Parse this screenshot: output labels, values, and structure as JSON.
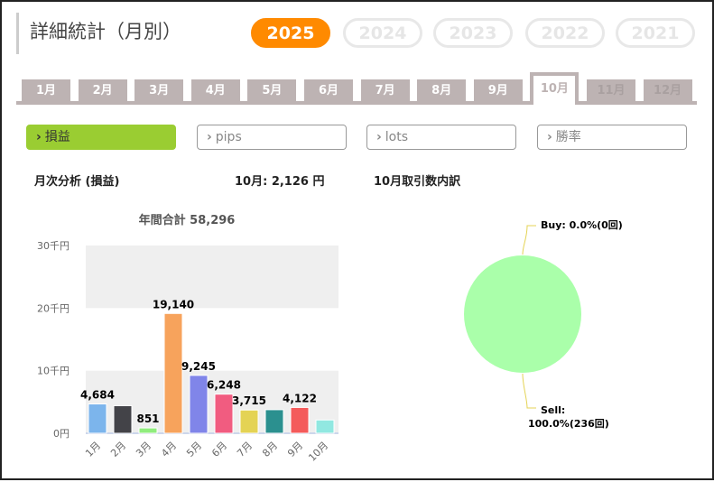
{
  "title": "詳細統計（月別）",
  "years": [
    {
      "label": "2025",
      "active": true
    },
    {
      "label": "2024"
    },
    {
      "label": "2023"
    },
    {
      "label": "2022"
    },
    {
      "label": "2021"
    }
  ],
  "months": [
    "1月",
    "2月",
    "3月",
    "4月",
    "5月",
    "6月",
    "7月",
    "8月",
    "9月",
    "10月",
    "11月",
    "12月"
  ],
  "active_month": "10月",
  "metrics": [
    "損益",
    "pips",
    "lots",
    "勝率"
  ],
  "chevron": "›",
  "section": {
    "left_title": "月次分析 (損益)",
    "month_summary": "10月:  2,126 円",
    "right_title": "10月取引数内訳"
  },
  "chart_data": [
    {
      "type": "bar",
      "title": "年間合計 58,296",
      "categories": [
        "1月",
        "2月",
        "3月",
        "4月",
        "5月",
        "6月",
        "7月",
        "8月",
        "9月",
        "10月"
      ],
      "values": [
        4684,
        4400,
        851,
        19140,
        9245,
        6248,
        3715,
        3765,
        4122,
        2126
      ],
      "data_labels": [
        "4,684",
        null,
        "851",
        "19,140",
        "9,245",
        "6,248",
        "3,715",
        null,
        "4,122",
        null
      ],
      "colors": [
        "#7cb5ec",
        "#434348",
        "#90ed7d",
        "#f7a35c",
        "#8085e9",
        "#f15c80",
        "#e4d354",
        "#2b908f",
        "#f45b5b",
        "#91e8e1"
      ],
      "yticks": [
        "0円",
        "10千円",
        "20千円",
        "30千円"
      ],
      "ylim": [
        0,
        30000
      ]
    },
    {
      "type": "pie",
      "labels": [
        "Buy: 0.0%(0回)",
        "Sell:",
        "100.0%(236回)"
      ],
      "slices": [
        {
          "name": "Buy",
          "value": 0
        },
        {
          "name": "Sell",
          "value": 236
        }
      ],
      "color": "#aaffaa"
    }
  ]
}
